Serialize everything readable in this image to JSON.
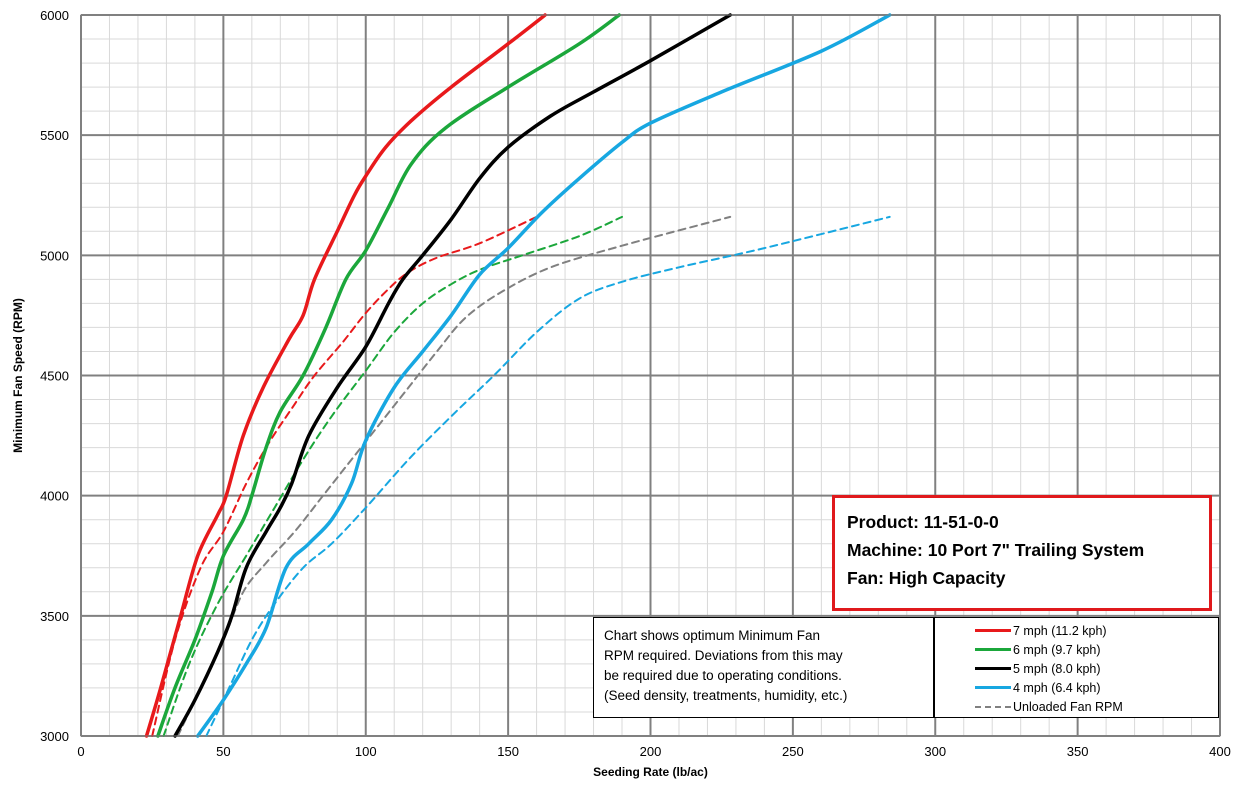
{
  "chart_data": {
    "type": "line",
    "title": "",
    "xlabel": "Seeding Rate (lb/ac)",
    "ylabel": "Minimum Fan Speed (RPM)",
    "xlim": [
      0,
      400
    ],
    "ylim": [
      3000,
      6000
    ],
    "x_ticks": [
      0,
      50,
      100,
      150,
      200,
      250,
      300,
      350,
      400
    ],
    "y_ticks": [
      3000,
      3500,
      4000,
      4500,
      5000,
      5500,
      6000
    ],
    "grid": "major and minor",
    "legend_position": "bottom-right",
    "series": [
      {
        "name": "7 mph (11.2 kph)",
        "color": "#e8191b",
        "style": "solid",
        "x": [
          23,
          28,
          35,
          41,
          48,
          51,
          57,
          64,
          73,
          78,
          82,
          90,
          96,
          100,
          107,
          116,
          130,
          150,
          163
        ],
        "y": [
          3000,
          3200,
          3500,
          3750,
          3920,
          4000,
          4250,
          4450,
          4650,
          4750,
          4900,
          5100,
          5250,
          5330,
          5450,
          5560,
          5700,
          5880,
          6000
        ]
      },
      {
        "name": "Unloaded Fan RPM (7 mph)",
        "color": "#e8191b",
        "style": "dashed",
        "x": [
          25,
          33,
          42,
          50,
          58,
          66,
          75,
          82,
          92,
          100,
          108,
          115,
          125,
          140,
          160
        ],
        "y": [
          3000,
          3400,
          3700,
          3850,
          4050,
          4220,
          4380,
          4500,
          4640,
          4760,
          4860,
          4930,
          4990,
          5050,
          5160
        ]
      },
      {
        "name": "6 mph (9.7 kph)",
        "color": "#1ba73b",
        "style": "solid",
        "x": [
          27,
          33,
          40,
          46,
          50,
          57,
          60,
          65,
          70,
          78,
          86,
          93,
          100,
          108,
          116,
          128,
          150,
          175,
          189
        ],
        "y": [
          3000,
          3200,
          3400,
          3600,
          3750,
          3900,
          4000,
          4200,
          4350,
          4500,
          4700,
          4900,
          5020,
          5200,
          5380,
          5530,
          5700,
          5880,
          6000
        ]
      },
      {
        "name": "Unloaded Fan RPM (6 mph)",
        "color": "#1ba73b",
        "style": "dashed",
        "x": [
          29,
          38,
          48,
          58,
          68,
          78,
          88,
          100,
          110,
          120,
          130,
          140,
          155,
          175,
          190
        ],
        "y": [
          3000,
          3300,
          3550,
          3750,
          3950,
          4150,
          4330,
          4520,
          4680,
          4800,
          4880,
          4940,
          5000,
          5080,
          5160
        ]
      },
      {
        "name": "5 mph (8.0 kph)",
        "color": "#000000",
        "style": "solid",
        "x": [
          33,
          40,
          48,
          53,
          58,
          65,
          70,
          74,
          80,
          90,
          100,
          108,
          113,
          120,
          130,
          140,
          150,
          165,
          180,
          200,
          228
        ],
        "y": [
          3000,
          3150,
          3350,
          3500,
          3700,
          3850,
          3950,
          4050,
          4250,
          4450,
          4620,
          4800,
          4900,
          5000,
          5150,
          5320,
          5450,
          5580,
          5680,
          5810,
          6000
        ]
      },
      {
        "name": "Unloaded Fan RPM (5 mph)",
        "color": "#808080",
        "style": "dashed",
        "x": [
          34,
          42,
          50,
          57,
          65,
          75,
          85,
          95,
          105,
          115,
          125,
          135,
          148,
          165,
          190,
          228
        ],
        "y": [
          3000,
          3200,
          3400,
          3600,
          3720,
          3850,
          4000,
          4150,
          4300,
          4450,
          4600,
          4740,
          4850,
          4950,
          5040,
          5160
        ]
      },
      {
        "name": "4 mph (6.4 kph)",
        "color": "#17a7e1",
        "style": "solid",
        "x": [
          41,
          50,
          58,
          65,
          72,
          80,
          88,
          95,
          100,
          110,
          120,
          130,
          140,
          150,
          162,
          175,
          190,
          200,
          225,
          260,
          284
        ],
        "y": [
          3000,
          3150,
          3300,
          3450,
          3700,
          3800,
          3900,
          4050,
          4230,
          4450,
          4600,
          4750,
          4920,
          5030,
          5180,
          5320,
          5470,
          5550,
          5680,
          5850,
          6000
        ]
      },
      {
        "name": "Unloaded Fan RPM (4 mph)",
        "color": "#17a7e1",
        "style": "dashed",
        "x": [
          44,
          52,
          60,
          68,
          78,
          88,
          100,
          115,
          130,
          145,
          160,
          175,
          190,
          210,
          240,
          284
        ],
        "y": [
          3000,
          3200,
          3400,
          3550,
          3700,
          3800,
          3950,
          4150,
          4330,
          4500,
          4680,
          4820,
          4890,
          4950,
          5030,
          5160
        ]
      }
    ]
  },
  "info_box": {
    "line1": "Product:  11-51-0-0",
    "line2": "Machine: 10 Port 7\" Trailing System",
    "line3": "Fan:  High Capacity"
  },
  "note": {
    "line1": "Chart shows optimum Minimum Fan",
    "line2": "RPM required.  Deviations from this may",
    "line3": "be required due to operating conditions.",
    "line4": "(Seed density, treatments, humidity, etc.)"
  },
  "legend": {
    "items": [
      {
        "label": "7 mph (11.2 kph)",
        "color": "#e8191b",
        "style": "solid"
      },
      {
        "label": "6 mph (9.7 kph)",
        "color": "#1ba73b",
        "style": "solid"
      },
      {
        "label": "5 mph (8.0 kph)",
        "color": "#000000",
        "style": "solid"
      },
      {
        "label": "4 mph (6.4 kph)",
        "color": "#17a7e1",
        "style": "solid"
      },
      {
        "label": "Unloaded Fan RPM",
        "color": "#808080",
        "style": "dashed"
      }
    ]
  }
}
